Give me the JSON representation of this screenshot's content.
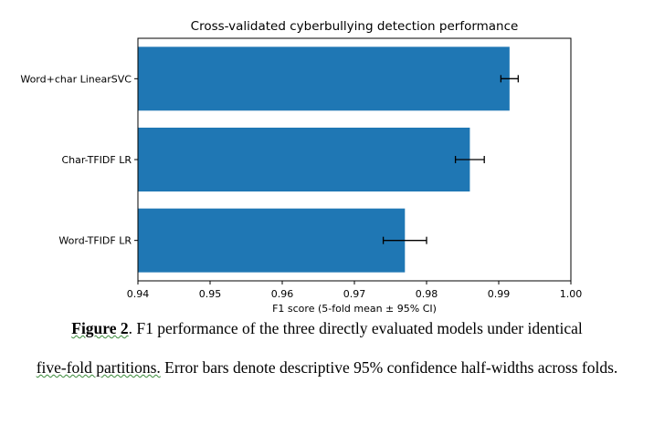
{
  "chart_data": {
    "type": "bar",
    "orientation": "horizontal",
    "title": "Cross-validated cyberbullying detection performance",
    "xlabel": "F1 score (5-fold mean ± 95% CI)",
    "ylabel": "",
    "xlim": [
      0.94,
      1.0
    ],
    "xticks": [
      "0.94",
      "0.95",
      "0.96",
      "0.97",
      "0.98",
      "0.99",
      "1.00"
    ],
    "xtick_values": [
      0.94,
      0.95,
      0.96,
      0.97,
      0.98,
      0.99,
      1.0
    ],
    "categories": [
      "Word+char LinearSVC",
      "Char-TFIDF LR",
      "Word-TFIDF LR"
    ],
    "values": [
      0.9915,
      0.986,
      0.977
    ],
    "error_halfwidths": [
      0.0012,
      0.002,
      0.003
    ],
    "bar_color": "#1f77b4",
    "grid": false
  },
  "caption": {
    "label": "Figure 2",
    "line1_rest": ". F1 performance of the three directly evaluated models under identical",
    "line2_wavy": "five-fold partitions.",
    "line2_rest": " Error bars denote  descriptive 95% confidence half-widths across folds."
  }
}
